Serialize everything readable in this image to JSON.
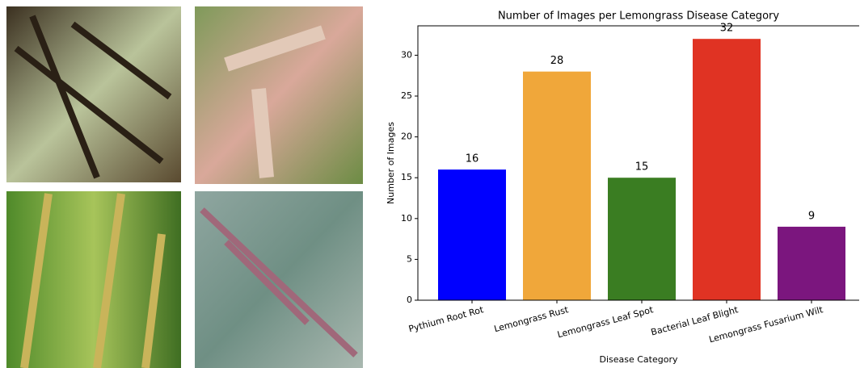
{
  "chart_data": {
    "type": "bar",
    "title": "Number of Images per Lemongrass Disease Category",
    "x_label": "Disease Category",
    "y_label": "Number of Images",
    "categories": [
      "Pythium Root Rot",
      "Lemongrass Rust",
      "Lemongrass Leaf Spot",
      "Bacterial Leaf Blight",
      "Lemongrass Fusarium Wilt"
    ],
    "values": [
      16,
      28,
      15,
      32,
      9
    ],
    "colors": [
      "#0000ff",
      "#f0a73a",
      "#3a7d22",
      "#e03323",
      "#7b167e"
    ],
    "ylim": [
      0,
      33.6
    ],
    "yticks": [
      0,
      5,
      10,
      15,
      20,
      25,
      30
    ]
  }
}
